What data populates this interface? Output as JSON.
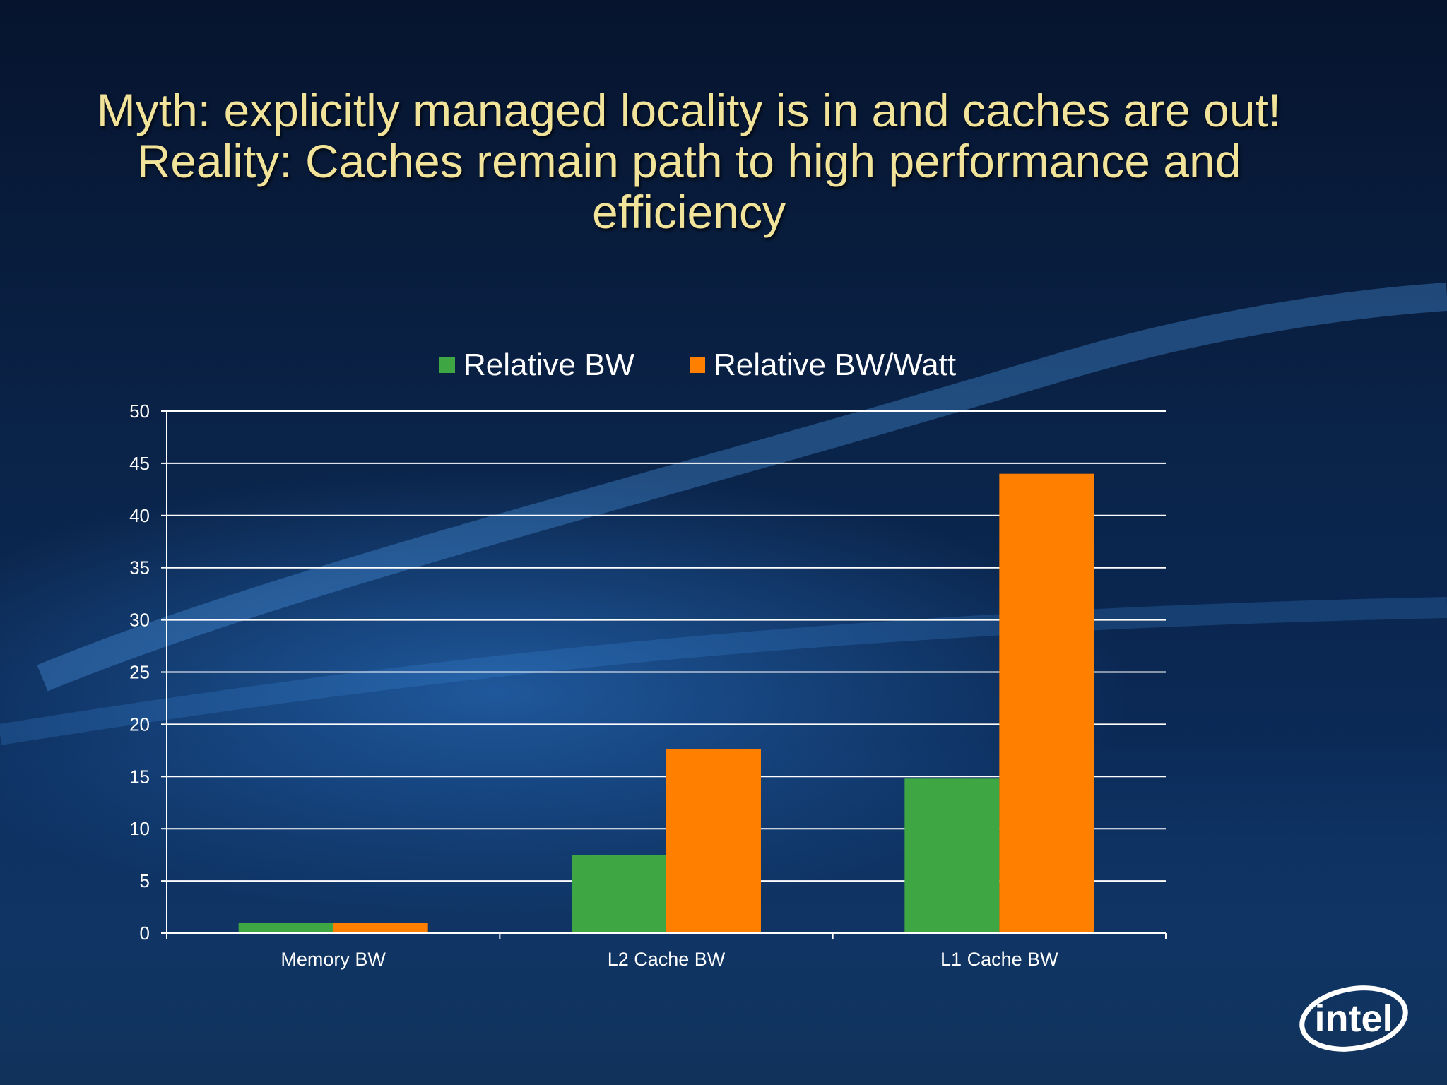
{
  "title_lines": [
    "Myth: explicitly managed locality is in and caches are out!",
    "Reality: Caches remain path to high performance and",
    "efficiency"
  ],
  "logo": {
    "text": "intel"
  },
  "colors": {
    "series_green": "#3fa644",
    "series_orange": "#ff7f00",
    "title": "#f2e39a",
    "axis_text": "#ffffff"
  },
  "chart_data": {
    "type": "bar",
    "title": "",
    "xlabel": "",
    "ylabel": "",
    "categories": [
      "Memory BW",
      "L2 Cache BW",
      "L1 Cache BW"
    ],
    "series": [
      {
        "name": "Relative BW",
        "values": [
          1,
          7.5,
          14.8
        ],
        "color": "#3fa644"
      },
      {
        "name": "Relative BW/Watt",
        "values": [
          1,
          17.6,
          44
        ],
        "color": "#ff7f00"
      }
    ],
    "yticks": [
      "0",
      "5",
      "10",
      "15",
      "20",
      "25",
      "30",
      "35",
      "40",
      "45",
      "50"
    ],
    "ylim": [
      0,
      50
    ],
    "grid": true,
    "legend_position": "top"
  }
}
